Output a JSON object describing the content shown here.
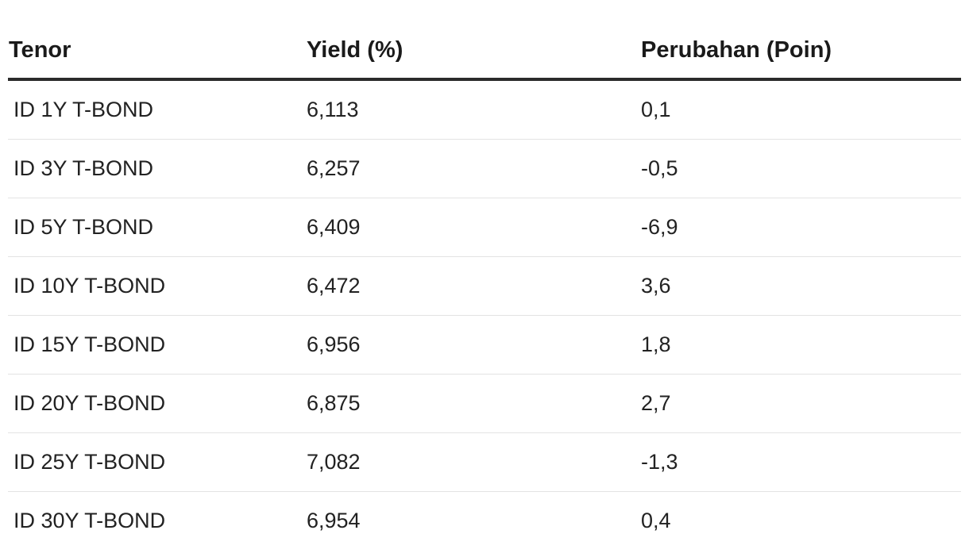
{
  "table": {
    "headers": [
      "Tenor",
      "Yield (%)",
      "Perubahan (Poin)"
    ],
    "rows": [
      {
        "tenor": "ID 1Y T-BOND",
        "yield": "6,113",
        "change": "0,1"
      },
      {
        "tenor": "ID 3Y T-BOND",
        "yield": "6,257",
        "change": "-0,5"
      },
      {
        "tenor": "ID 5Y T-BOND",
        "yield": "6,409",
        "change": "-6,9"
      },
      {
        "tenor": "ID 10Y T-BOND",
        "yield": "6,472",
        "change": "3,6"
      },
      {
        "tenor": "ID 15Y T-BOND",
        "yield": "6,956",
        "change": "1,8"
      },
      {
        "tenor": "ID 20Y T-BOND",
        "yield": "6,875",
        "change": "2,7"
      },
      {
        "tenor": "ID 25Y T-BOND",
        "yield": "7,082",
        "change": "-1,3"
      },
      {
        "tenor": "ID 30Y T-BOND",
        "yield": "6,954",
        "change": "0,4"
      }
    ]
  }
}
